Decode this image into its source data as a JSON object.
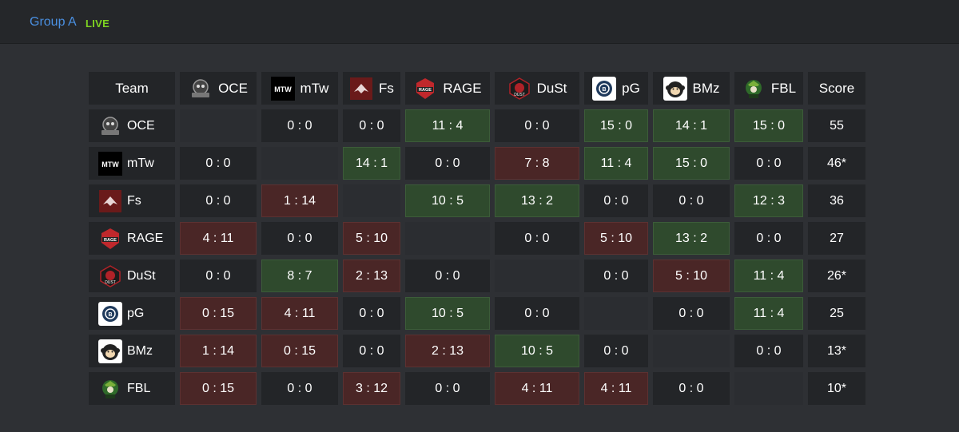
{
  "header": {
    "group_title": "Group A",
    "live_label": "LIVE"
  },
  "table": {
    "team_header": "Team",
    "score_header": "Score",
    "columns": [
      {
        "abbr": "OCE",
        "icon": "oceanus-logo-icon"
      },
      {
        "abbr": "mTw",
        "icon": "mtw-logo-icon"
      },
      {
        "abbr": "Fs",
        "icon": "fs-logo-icon"
      },
      {
        "abbr": "RAGE",
        "icon": "rage-logo-icon"
      },
      {
        "abbr": "DuSt",
        "icon": "dust-logo-icon"
      },
      {
        "abbr": "pG",
        "icon": "pg-logo-icon"
      },
      {
        "abbr": "BMz",
        "icon": "bmz-logo-icon"
      },
      {
        "abbr": "FBL",
        "icon": "fbl-logo-icon"
      }
    ],
    "rows": [
      {
        "team": "OCE",
        "score": "55",
        "results": [
          "",
          "0 : 0",
          "0 : 0",
          "11 : 4",
          "0 : 0",
          "15 : 0",
          "14 : 1",
          "15 : 0"
        ],
        "outcomes": [
          "self",
          "draw",
          "draw",
          "win",
          "draw",
          "win",
          "win",
          "win"
        ]
      },
      {
        "team": "mTw",
        "score": "46*",
        "results": [
          "0 : 0",
          "",
          "14 : 1",
          "0 : 0",
          "7 : 8",
          "11 : 4",
          "15 : 0",
          "0 : 0"
        ],
        "outcomes": [
          "draw",
          "self",
          "win",
          "draw",
          "loss",
          "win",
          "win",
          "draw"
        ]
      },
      {
        "team": "Fs",
        "score": "36",
        "results": [
          "0 : 0",
          "1 : 14",
          "",
          "10 : 5",
          "13 : 2",
          "0 : 0",
          "0 : 0",
          "12 : 3"
        ],
        "outcomes": [
          "draw",
          "loss",
          "self",
          "win",
          "win",
          "draw",
          "draw",
          "win"
        ]
      },
      {
        "team": "RAGE",
        "score": "27",
        "results": [
          "4 : 11",
          "0 : 0",
          "5 : 10",
          "",
          "0 : 0",
          "5 : 10",
          "13 : 2",
          "0 : 0"
        ],
        "outcomes": [
          "loss",
          "draw",
          "loss",
          "self",
          "draw",
          "loss",
          "win",
          "draw"
        ]
      },
      {
        "team": "DuSt",
        "score": "26*",
        "results": [
          "0 : 0",
          "8 : 7",
          "2 : 13",
          "0 : 0",
          "",
          "0 : 0",
          "5 : 10",
          "11 : 4"
        ],
        "outcomes": [
          "draw",
          "win",
          "loss",
          "draw",
          "self",
          "draw",
          "loss",
          "win"
        ]
      },
      {
        "team": "pG",
        "score": "25",
        "results": [
          "0 : 15",
          "4 : 11",
          "0 : 0",
          "10 : 5",
          "0 : 0",
          "",
          "0 : 0",
          "11 : 4"
        ],
        "outcomes": [
          "loss",
          "loss",
          "draw",
          "win",
          "draw",
          "self",
          "draw",
          "win"
        ]
      },
      {
        "team": "BMz",
        "score": "13*",
        "results": [
          "1 : 14",
          "0 : 15",
          "0 : 0",
          "2 : 13",
          "10 : 5",
          "0 : 0",
          "",
          "0 : 0"
        ],
        "outcomes": [
          "loss",
          "loss",
          "draw",
          "loss",
          "win",
          "draw",
          "self",
          "draw"
        ]
      },
      {
        "team": "FBL",
        "score": "10*",
        "results": [
          "0 : 15",
          "0 : 0",
          "3 : 12",
          "0 : 0",
          "4 : 11",
          "4 : 11",
          "0 : 0",
          ""
        ],
        "outcomes": [
          "loss",
          "draw",
          "loss",
          "draw",
          "loss",
          "loss",
          "draw",
          "self"
        ]
      }
    ]
  },
  "colors": {
    "win": "#2f4a2d",
    "loss": "#4a2626",
    "draw": "#232528",
    "title": "#4a90e2",
    "live": "#7ed321"
  }
}
